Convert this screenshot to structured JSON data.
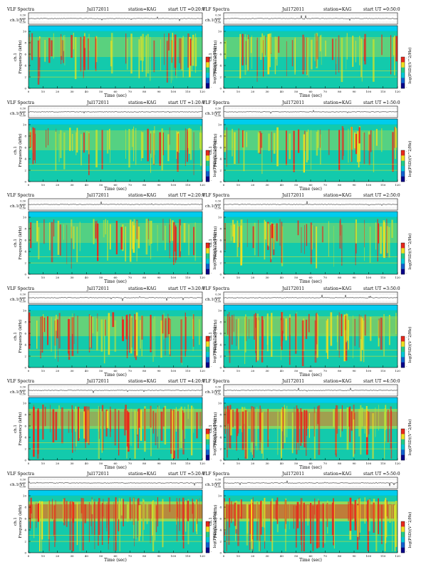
{
  "figure": {
    "header_left": "VLF Spectra",
    "date": "Jul172011",
    "station": "station=KAG",
    "start_prefix": "start  UT",
    "amp_label": "ch.1(V)",
    "freq_label_line1": "ch.1",
    "freq_label_line2": "Frequency (kHz)",
    "xlabel": "Time (sec)",
    "colorbar_label": "log(PSD)(V^2/Hz)",
    "colors": {
      "background": "#00c8d8",
      "base": "#22cc88",
      "mid": "#b8e03a",
      "high": "#f0e020",
      "peak": "#e8281c",
      "band_top": "#00ccee"
    }
  },
  "chart_data": [
    {
      "type": "heatmap",
      "panel": "0-20",
      "start_ut": "=0:20:0",
      "intensity": 0.35,
      "xlim": [
        0,
        120
      ],
      "ylim": [
        0,
        10
      ],
      "xticks": [
        "0",
        "10",
        "20",
        "30",
        "40",
        "50",
        "60",
        "70",
        "80",
        "90",
        "100",
        "110",
        "120"
      ],
      "yticks": [
        "0",
        "2",
        "4",
        "6",
        "8",
        "10"
      ],
      "amp_ticks": [
        "0.30",
        "0.00",
        "-0.30"
      ],
      "colorbar_ticks": [
        "-",
        "-"
      ]
    },
    {
      "type": "heatmap",
      "panel": "0-50",
      "start_ut": "=0:50:0",
      "intensity": 0.36,
      "xlim": [
        0,
        120
      ],
      "ylim": [
        0,
        10
      ],
      "xticks": [
        "0",
        "10",
        "20",
        "30",
        "40",
        "50",
        "60",
        "70",
        "80",
        "90",
        "100",
        "110",
        "120"
      ],
      "yticks": [
        "0",
        "2",
        "4",
        "6",
        "8",
        "10"
      ],
      "amp_ticks": [
        "0.30",
        "0.00",
        "-0.30"
      ],
      "colorbar_ticks": [
        "-",
        "-"
      ]
    },
    {
      "type": "heatmap",
      "panel": "1-20",
      "start_ut": "=1:20:0",
      "intensity": 0.3,
      "xlim": [
        0,
        120
      ],
      "ylim": [
        0,
        10
      ],
      "xticks": [
        "0",
        "10",
        "20",
        "30",
        "40",
        "50",
        "60",
        "70",
        "80",
        "90",
        "100",
        "110",
        "120"
      ],
      "yticks": [
        "0",
        "2",
        "4",
        "6",
        "8",
        "10"
      ],
      "amp_ticks": [
        "0.30",
        "0.00",
        "-0.30"
      ],
      "colorbar_ticks": [
        "-",
        "-"
      ]
    },
    {
      "type": "heatmap",
      "panel": "1-50",
      "start_ut": "=1:50:0",
      "intensity": 0.3,
      "xlim": [
        0,
        120
      ],
      "ylim": [
        0,
        10
      ],
      "xticks": [
        "0",
        "10",
        "20",
        "30",
        "40",
        "50",
        "60",
        "70",
        "80",
        "90",
        "100",
        "110",
        "120"
      ],
      "yticks": [
        "0",
        "2",
        "4",
        "6",
        "8",
        "10"
      ],
      "amp_ticks": [
        "0.30",
        "0.00",
        "-0.30"
      ],
      "colorbar_ticks": [
        "-",
        "-"
      ]
    },
    {
      "type": "heatmap",
      "panel": "2-20",
      "start_ut": "=2:20:0",
      "intensity": 0.28,
      "xlim": [
        0,
        120
      ],
      "ylim": [
        0,
        10
      ],
      "xticks": [
        "0",
        "10",
        "20",
        "30",
        "40",
        "50",
        "60",
        "70",
        "80",
        "90",
        "100",
        "110",
        "120"
      ],
      "yticks": [
        "0",
        "2",
        "4",
        "6",
        "8",
        "10"
      ],
      "amp_ticks": [
        "0.30",
        "0.00",
        "-0.30"
      ],
      "colorbar_ticks": [
        "-",
        "-"
      ]
    },
    {
      "type": "heatmap",
      "panel": "2-50",
      "start_ut": "=2:50:0",
      "intensity": 0.3,
      "xlim": [
        0,
        120
      ],
      "ylim": [
        0,
        10
      ],
      "xticks": [
        "0",
        "10",
        "20",
        "30",
        "40",
        "50",
        "60",
        "70",
        "80",
        "90",
        "100",
        "110",
        "120"
      ],
      "yticks": [
        "0",
        "2",
        "4",
        "6",
        "8",
        "10"
      ],
      "amp_ticks": [
        "0.30",
        "0.00",
        "-0.30"
      ],
      "colorbar_ticks": [
        "-",
        "-"
      ]
    },
    {
      "type": "heatmap",
      "panel": "3-20",
      "start_ut": "=3:20:0",
      "intensity": 0.42,
      "xlim": [
        0,
        120
      ],
      "ylim": [
        0,
        10
      ],
      "xticks": [
        "0",
        "10",
        "20",
        "30",
        "40",
        "50",
        "60",
        "70",
        "80",
        "90",
        "100",
        "110",
        "120"
      ],
      "yticks": [
        "0",
        "2",
        "4",
        "6",
        "8",
        "10"
      ],
      "amp_ticks": [
        "0.30",
        "0.00",
        "-0.30"
      ],
      "colorbar_ticks": [
        "-",
        "-"
      ]
    },
    {
      "type": "heatmap",
      "panel": "3-50",
      "start_ut": "=3:50:0",
      "intensity": 0.48,
      "xlim": [
        0,
        120
      ],
      "ylim": [
        0,
        10
      ],
      "xticks": [
        "0",
        "10",
        "20",
        "30",
        "40",
        "50",
        "60",
        "70",
        "80",
        "90",
        "100",
        "110",
        "120"
      ],
      "yticks": [
        "0",
        "2",
        "4",
        "6",
        "8",
        "10"
      ],
      "amp_ticks": [
        "0.30",
        "0.00",
        "-0.30"
      ],
      "colorbar_ticks": [
        "-",
        "-"
      ]
    },
    {
      "type": "heatmap",
      "panel": "4-20",
      "start_ut": "=4:20:0",
      "intensity": 0.62,
      "xlim": [
        0,
        120
      ],
      "ylim": [
        0,
        10
      ],
      "xticks": [
        "0",
        "10",
        "20",
        "30",
        "40",
        "50",
        "60",
        "70",
        "80",
        "90",
        "100",
        "110",
        "120"
      ],
      "yticks": [
        "0",
        "2",
        "4",
        "6",
        "8",
        "10"
      ],
      "amp_ticks": [
        "0.30",
        "0.00",
        "-0.30"
      ],
      "colorbar_ticks": [
        "-",
        "-"
      ]
    },
    {
      "type": "heatmap",
      "panel": "4-50",
      "start_ut": "=4:50:0",
      "intensity": 0.7,
      "xlim": [
        0,
        120
      ],
      "ylim": [
        0,
        10
      ],
      "xticks": [
        "0",
        "10",
        "20",
        "30",
        "40",
        "50",
        "60",
        "70",
        "80",
        "90",
        "100",
        "110",
        "120"
      ],
      "yticks": [
        "0",
        "2",
        "4",
        "6",
        "8",
        "10"
      ],
      "amp_ticks": [
        "0.30",
        "0.00",
        "-0.30"
      ],
      "colorbar_ticks": [
        "-",
        "-"
      ]
    },
    {
      "type": "heatmap",
      "panel": "5-20",
      "start_ut": "=5:20:0",
      "intensity": 0.82,
      "xlim": [
        0,
        120
      ],
      "ylim": [
        0,
        10
      ],
      "xticks": [
        "0",
        "10",
        "20",
        "30",
        "40",
        "50",
        "60",
        "70",
        "80",
        "90",
        "100",
        "110",
        "120"
      ],
      "yticks": [
        "0",
        "2",
        "4",
        "6",
        "8",
        "10"
      ],
      "amp_ticks": [
        "0.30",
        "0.00",
        "-0.30"
      ],
      "colorbar_ticks": [
        "-",
        "-"
      ]
    },
    {
      "type": "heatmap",
      "panel": "5-50",
      "start_ut": "=5:50:0",
      "intensity": 0.88,
      "xlim": [
        0,
        120
      ],
      "ylim": [
        0,
        10
      ],
      "xticks": [
        "0",
        "10",
        "20",
        "30",
        "40",
        "50",
        "60",
        "70",
        "80",
        "90",
        "100",
        "110",
        "120"
      ],
      "yticks": [
        "0",
        "2",
        "4",
        "6",
        "8",
        "10"
      ],
      "amp_ticks": [
        "0.30",
        "0.00",
        "-0.30"
      ],
      "colorbar_ticks": [
        "-",
        "-"
      ]
    }
  ]
}
